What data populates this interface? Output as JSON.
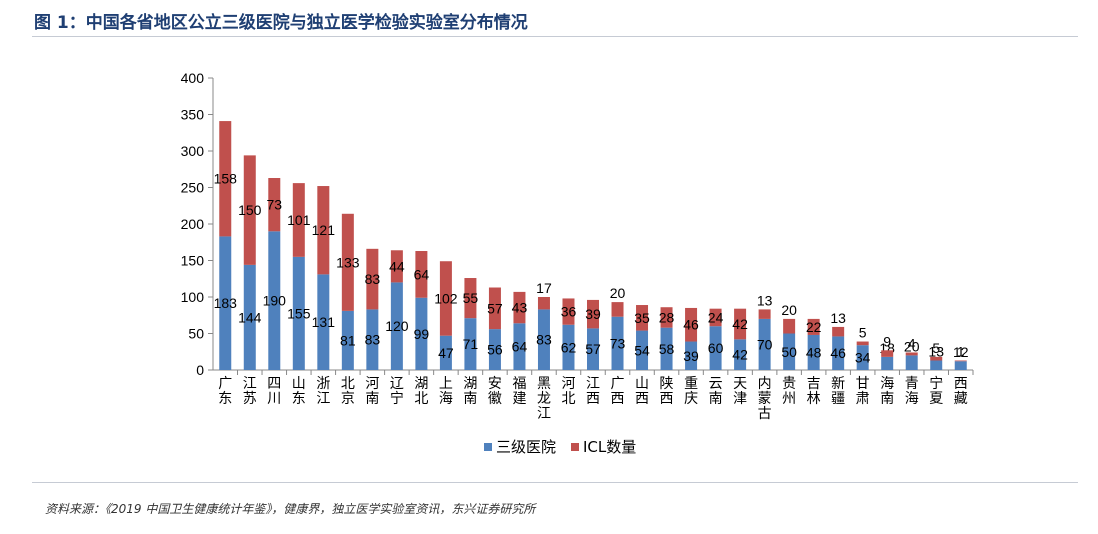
{
  "figure_title": "图 1：中国各省地区公立三级医院与独立医学检验实验室分布情况",
  "source_note": "资料来源：《2019 中国卫生健康统计年鉴》，健康界，独立医学实验室资讯，东兴证券研究所",
  "colors": {
    "title": "#1f3f73",
    "series_hospital": "#4f81bd",
    "series_icl": "#c0504d"
  },
  "chart_data": {
    "type": "bar",
    "stacked": true,
    "title": "",
    "xlabel": "",
    "ylabel": "",
    "ylim": [
      0,
      400
    ],
    "yticks": [
      0,
      50,
      100,
      150,
      200,
      250,
      300,
      350,
      400
    ],
    "grid": false,
    "legend_position": "bottom",
    "categories": [
      "广东",
      "江苏",
      "四川",
      "山东",
      "浙江",
      "北京",
      "河南",
      "辽宁",
      "湖北",
      "上海",
      "湖南",
      "安徽",
      "福建",
      "黑龙江",
      "河北",
      "江西",
      "广西",
      "山西",
      "陕西",
      "重庆",
      "云南",
      "天津",
      "内蒙古",
      "贵州",
      "吉林",
      "新疆",
      "甘肃",
      "海南",
      "青海",
      "宁夏",
      "西藏"
    ],
    "series": [
      {
        "name": "三级医院",
        "values": [
          183,
          144,
          190,
          155,
          131,
          81,
          83,
          120,
          99,
          47,
          71,
          56,
          64,
          83,
          62,
          57,
          73,
          54,
          58,
          39,
          60,
          42,
          70,
          50,
          48,
          46,
          34,
          18,
          20,
          13,
          12
        ]
      },
      {
        "name": "ICL数量",
        "values": [
          158,
          150,
          73,
          101,
          121,
          133,
          83,
          44,
          64,
          102,
          55,
          57,
          43,
          17,
          36,
          39,
          20,
          35,
          28,
          46,
          24,
          42,
          13,
          20,
          22,
          13,
          5,
          9,
          4,
          5,
          1
        ]
      }
    ]
  }
}
